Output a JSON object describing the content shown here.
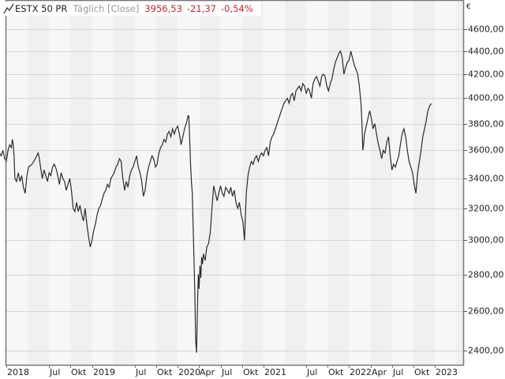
{
  "legend": {
    "symbol": "ESTX 50 PR",
    "interval": "Täglich [Close]",
    "last": "3956,53",
    "change": "-21,37",
    "change_pct": "-0,54%"
  },
  "axis": {
    "currency": "€",
    "y_labels": [
      "4600,00",
      "4400,00",
      "4200,00",
      "4000,00",
      "3800,00",
      "3600,00",
      "3400,00",
      "3200,00",
      "3000,00",
      "2800,00",
      "2600,00",
      "2400,00"
    ],
    "x_labels": [
      "2018",
      "Jul",
      "Okt",
      "2019",
      "Jul",
      "Okt",
      "2020",
      "Apr",
      "Jul",
      "Okt",
      "2021",
      "Jul",
      "Okt",
      "2022",
      "Apr",
      "Jul",
      "Okt",
      "2023"
    ]
  },
  "colors": {
    "line": "#2b2b2b",
    "stripe_dark": "#f0f0f0",
    "stripe_light": "#f7f7f7",
    "grid": "#d6d6d6",
    "frame": "#777777",
    "negative": "#d0202a"
  },
  "chart_data": {
    "type": "line",
    "title": "ESTX 50 PR Täglich [Close]",
    "xlabel": "",
    "ylabel": "€",
    "y_scale": "log",
    "ylim": [
      2350,
      4800
    ],
    "grid": true,
    "legend_position": "top-left",
    "x_ticks": [
      {
        "label": "2018",
        "t": 2018.0
      },
      {
        "label": "Jul",
        "t": 2018.5
      },
      {
        "label": "Okt",
        "t": 2018.75
      },
      {
        "label": "2019",
        "t": 2019.0
      },
      {
        "label": "Jul",
        "t": 2019.5
      },
      {
        "label": "Okt",
        "t": 2019.75
      },
      {
        "label": "2020",
        "t": 2020.0
      },
      {
        "label": "Apr",
        "t": 2020.25
      },
      {
        "label": "Jul",
        "t": 2020.5
      },
      {
        "label": "Okt",
        "t": 2020.75
      },
      {
        "label": "2021",
        "t": 2021.0
      },
      {
        "label": "Jul",
        "t": 2021.5
      },
      {
        "label": "Okt",
        "t": 2021.75
      },
      {
        "label": "2022",
        "t": 2022.0
      },
      {
        "label": "Apr",
        "t": 2022.25
      },
      {
        "label": "Jul",
        "t": 2022.5
      },
      {
        "label": "Okt",
        "t": 2022.75
      },
      {
        "label": "2023",
        "t": 2023.0
      }
    ],
    "y_ticks": [
      4600,
      4400,
      4200,
      4000,
      3800,
      3600,
      3400,
      3200,
      3000,
      2800,
      2600,
      2400
    ],
    "series": [
      {
        "name": "ESTX 50 PR",
        "points": [
          [
            2017.92,
            3580
          ],
          [
            2017.94,
            3560
          ],
          [
            2017.96,
            3600
          ],
          [
            2017.98,
            3540
          ],
          [
            2018.0,
            3520
          ],
          [
            2018.02,
            3600
          ],
          [
            2018.04,
            3640
          ],
          [
            2018.06,
            3620
          ],
          [
            2018.07,
            3680
          ],
          [
            2018.08,
            3650
          ],
          [
            2018.09,
            3560
          ],
          [
            2018.1,
            3400
          ],
          [
            2018.12,
            3380
          ],
          [
            2018.14,
            3440
          ],
          [
            2018.16,
            3380
          ],
          [
            2018.18,
            3420
          ],
          [
            2018.2,
            3340
          ],
          [
            2018.22,
            3300
          ],
          [
            2018.24,
            3420
          ],
          [
            2018.26,
            3480
          ],
          [
            2018.3,
            3500
          ],
          [
            2018.34,
            3540
          ],
          [
            2018.37,
            3580
          ],
          [
            2018.38,
            3560
          ],
          [
            2018.4,
            3480
          ],
          [
            2018.42,
            3400
          ],
          [
            2018.44,
            3460
          ],
          [
            2018.46,
            3420
          ],
          [
            2018.48,
            3380
          ],
          [
            2018.5,
            3440
          ],
          [
            2018.52,
            3420
          ],
          [
            2018.54,
            3480
          ],
          [
            2018.56,
            3500
          ],
          [
            2018.58,
            3470
          ],
          [
            2018.6,
            3420
          ],
          [
            2018.62,
            3360
          ],
          [
            2018.64,
            3440
          ],
          [
            2018.66,
            3400
          ],
          [
            2018.68,
            3380
          ],
          [
            2018.7,
            3320
          ],
          [
            2018.72,
            3360
          ],
          [
            2018.74,
            3400
          ],
          [
            2018.76,
            3320
          ],
          [
            2018.78,
            3200
          ],
          [
            2018.8,
            3180
          ],
          [
            2018.82,
            3240
          ],
          [
            2018.84,
            3180
          ],
          [
            2018.86,
            3220
          ],
          [
            2018.88,
            3160
          ],
          [
            2018.9,
            3120
          ],
          [
            2018.92,
            3200
          ],
          [
            2018.94,
            3100
          ],
          [
            2018.96,
            3020
          ],
          [
            2018.98,
            2960
          ],
          [
            2019.0,
            3000
          ],
          [
            2019.02,
            3060
          ],
          [
            2019.04,
            3100
          ],
          [
            2019.06,
            3160
          ],
          [
            2019.08,
            3200
          ],
          [
            2019.1,
            3220
          ],
          [
            2019.12,
            3260
          ],
          [
            2019.14,
            3300
          ],
          [
            2019.16,
            3320
          ],
          [
            2019.18,
            3360
          ],
          [
            2019.2,
            3340
          ],
          [
            2019.22,
            3400
          ],
          [
            2019.24,
            3420
          ],
          [
            2019.26,
            3440
          ],
          [
            2019.28,
            3480
          ],
          [
            2019.3,
            3500
          ],
          [
            2019.32,
            3540
          ],
          [
            2019.34,
            3520
          ],
          [
            2019.36,
            3400
          ],
          [
            2019.38,
            3320
          ],
          [
            2019.4,
            3380
          ],
          [
            2019.42,
            3340
          ],
          [
            2019.44,
            3420
          ],
          [
            2019.46,
            3460
          ],
          [
            2019.48,
            3480
          ],
          [
            2019.5,
            3520
          ],
          [
            2019.52,
            3560
          ],
          [
            2019.54,
            3480
          ],
          [
            2019.56,
            3440
          ],
          [
            2019.58,
            3380
          ],
          [
            2019.6,
            3280
          ],
          [
            2019.62,
            3320
          ],
          [
            2019.64,
            3420
          ],
          [
            2019.66,
            3480
          ],
          [
            2019.68,
            3520
          ],
          [
            2019.7,
            3560
          ],
          [
            2019.72,
            3540
          ],
          [
            2019.74,
            3480
          ],
          [
            2019.76,
            3500
          ],
          [
            2019.78,
            3580
          ],
          [
            2019.8,
            3620
          ],
          [
            2019.82,
            3640
          ],
          [
            2019.84,
            3680
          ],
          [
            2019.86,
            3660
          ],
          [
            2019.88,
            3720
          ],
          [
            2019.9,
            3740
          ],
          [
            2019.92,
            3700
          ],
          [
            2019.94,
            3760
          ],
          [
            2019.96,
            3720
          ],
          [
            2019.98,
            3760
          ],
          [
            2020.0,
            3780
          ],
          [
            2020.02,
            3720
          ],
          [
            2020.04,
            3640
          ],
          [
            2020.06,
            3700
          ],
          [
            2020.08,
            3760
          ],
          [
            2020.1,
            3800
          ],
          [
            2020.12,
            3860
          ],
          [
            2020.13,
            3860
          ],
          [
            2020.14,
            3680
          ],
          [
            2020.15,
            3500
          ],
          [
            2020.16,
            3380
          ],
          [
            2020.17,
            3300
          ],
          [
            2020.18,
            3100
          ],
          [
            2020.19,
            2900
          ],
          [
            2020.2,
            2700
          ],
          [
            2020.21,
            2450
          ],
          [
            2020.22,
            2390
          ],
          [
            2020.23,
            2600
          ],
          [
            2020.24,
            2800
          ],
          [
            2020.25,
            2720
          ],
          [
            2020.26,
            2850
          ],
          [
            2020.27,
            2780
          ],
          [
            2020.28,
            2900
          ],
          [
            2020.29,
            2860
          ],
          [
            2020.3,
            2920
          ],
          [
            2020.32,
            2880
          ],
          [
            2020.34,
            2960
          ],
          [
            2020.36,
            2980
          ],
          [
            2020.38,
            3050
          ],
          [
            2020.4,
            3200
          ],
          [
            2020.42,
            3350
          ],
          [
            2020.44,
            3300
          ],
          [
            2020.46,
            3250
          ],
          [
            2020.48,
            3300
          ],
          [
            2020.5,
            3350
          ],
          [
            2020.52,
            3300
          ],
          [
            2020.54,
            3280
          ],
          [
            2020.56,
            3340
          ],
          [
            2020.58,
            3320
          ],
          [
            2020.6,
            3300
          ],
          [
            2020.62,
            3340
          ],
          [
            2020.64,
            3280
          ],
          [
            2020.66,
            3320
          ],
          [
            2020.68,
            3240
          ],
          [
            2020.7,
            3200
          ],
          [
            2020.72,
            3240
          ],
          [
            2020.74,
            3160
          ],
          [
            2020.76,
            3120
          ],
          [
            2020.78,
            3000
          ],
          [
            2020.79,
            3150
          ],
          [
            2020.8,
            3300
          ],
          [
            2020.82,
            3420
          ],
          [
            2020.84,
            3480
          ],
          [
            2020.86,
            3520
          ],
          [
            2020.88,
            3500
          ],
          [
            2020.9,
            3540
          ],
          [
            2020.92,
            3560
          ],
          [
            2020.94,
            3520
          ],
          [
            2020.96,
            3560
          ],
          [
            2020.98,
            3580
          ],
          [
            2021.0,
            3560
          ],
          [
            2021.02,
            3600
          ],
          [
            2021.04,
            3620
          ],
          [
            2021.06,
            3560
          ],
          [
            2021.08,
            3660
          ],
          [
            2021.1,
            3700
          ],
          [
            2021.12,
            3720
          ],
          [
            2021.14,
            3760
          ],
          [
            2021.16,
            3800
          ],
          [
            2021.18,
            3840
          ],
          [
            2021.2,
            3880
          ],
          [
            2021.22,
            3920
          ],
          [
            2021.24,
            3960
          ],
          [
            2021.26,
            3980
          ],
          [
            2021.28,
            4000
          ],
          [
            2021.3,
            3960
          ],
          [
            2021.32,
            4020
          ],
          [
            2021.34,
            4040
          ],
          [
            2021.36,
            3980
          ],
          [
            2021.38,
            4060
          ],
          [
            2021.4,
            4080
          ],
          [
            2021.42,
            4100
          ],
          [
            2021.44,
            4060
          ],
          [
            2021.46,
            4120
          ],
          [
            2021.48,
            4100
          ],
          [
            2021.5,
            4040
          ],
          [
            2021.52,
            4080
          ],
          [
            2021.54,
            4060
          ],
          [
            2021.56,
            4000
          ],
          [
            2021.58,
            4120
          ],
          [
            2021.6,
            4160
          ],
          [
            2021.62,
            4180
          ],
          [
            2021.64,
            4140
          ],
          [
            2021.66,
            4100
          ],
          [
            2021.68,
            4180
          ],
          [
            2021.7,
            4200
          ],
          [
            2021.72,
            4180
          ],
          [
            2021.74,
            4100
          ],
          [
            2021.76,
            4060
          ],
          [
            2021.78,
            4120
          ],
          [
            2021.8,
            4160
          ],
          [
            2021.82,
            4240
          ],
          [
            2021.84,
            4300
          ],
          [
            2021.86,
            4340
          ],
          [
            2021.88,
            4380
          ],
          [
            2021.9,
            4400
          ],
          [
            2021.92,
            4340
          ],
          [
            2021.94,
            4200
          ],
          [
            2021.96,
            4260
          ],
          [
            2021.98,
            4300
          ],
          [
            2022.0,
            4320
          ],
          [
            2022.02,
            4400
          ],
          [
            2022.04,
            4340
          ],
          [
            2022.06,
            4280
          ],
          [
            2022.08,
            4240
          ],
          [
            2022.1,
            4200
          ],
          [
            2022.12,
            4100
          ],
          [
            2022.14,
            3950
          ],
          [
            2022.15,
            3800
          ],
          [
            2022.16,
            3600
          ],
          [
            2022.17,
            3650
          ],
          [
            2022.18,
            3720
          ],
          [
            2022.2,
            3780
          ],
          [
            2022.22,
            3840
          ],
          [
            2022.24,
            3900
          ],
          [
            2022.26,
            3840
          ],
          [
            2022.28,
            3760
          ],
          [
            2022.3,
            3800
          ],
          [
            2022.32,
            3720
          ],
          [
            2022.34,
            3650
          ],
          [
            2022.36,
            3600
          ],
          [
            2022.38,
            3540
          ],
          [
            2022.4,
            3600
          ],
          [
            2022.42,
            3580
          ],
          [
            2022.44,
            3660
          ],
          [
            2022.46,
            3700
          ],
          [
            2022.48,
            3560
          ],
          [
            2022.5,
            3460
          ],
          [
            2022.52,
            3500
          ],
          [
            2022.54,
            3480
          ],
          [
            2022.56,
            3520
          ],
          [
            2022.58,
            3560
          ],
          [
            2022.6,
            3650
          ],
          [
            2022.62,
            3720
          ],
          [
            2022.64,
            3760
          ],
          [
            2022.66,
            3700
          ],
          [
            2022.68,
            3600
          ],
          [
            2022.7,
            3520
          ],
          [
            2022.72,
            3480
          ],
          [
            2022.74,
            3440
          ],
          [
            2022.76,
            3360
          ],
          [
            2022.78,
            3300
          ],
          [
            2022.8,
            3440
          ],
          [
            2022.82,
            3520
          ],
          [
            2022.84,
            3600
          ],
          [
            2022.86,
            3700
          ],
          [
            2022.88,
            3760
          ],
          [
            2022.9,
            3820
          ],
          [
            2022.92,
            3900
          ],
          [
            2022.94,
            3940
          ],
          [
            2022.96,
            3956.53
          ]
        ]
      }
    ]
  }
}
